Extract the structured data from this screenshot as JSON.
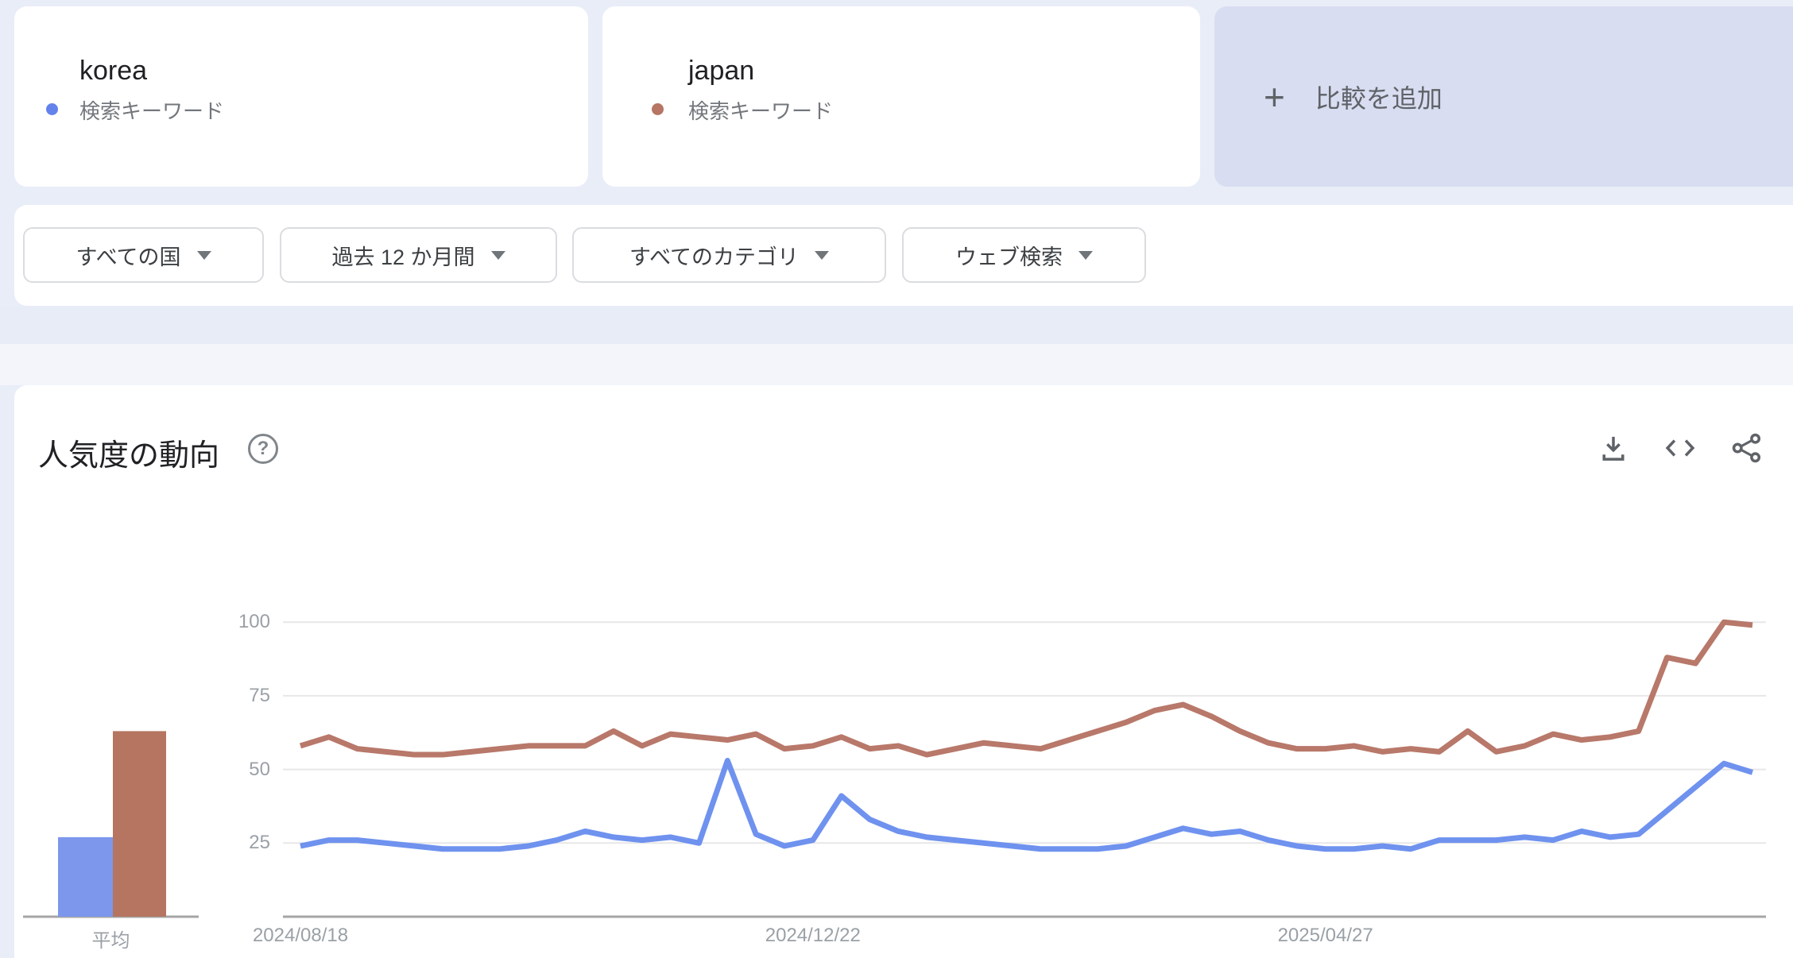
{
  "terms": [
    {
      "keyword": "korea",
      "type_label": "検索キーワード",
      "color": "#6F92EF",
      "dot_color": "#6382EB"
    },
    {
      "keyword": "japan",
      "type_label": "検索キーワード",
      "color": "#B8786A",
      "dot_color": "#B77564"
    }
  ],
  "add_comparison": {
    "plus_glyph": "+",
    "label": "比較を追加"
  },
  "filters": [
    {
      "label": "すべての国"
    },
    {
      "label": "過去 12 か月間"
    },
    {
      "label": "すべてのカテゴリ"
    },
    {
      "label": "ウェブ検索"
    }
  ],
  "section": {
    "title": "人気度の動向",
    "help_glyph": "?",
    "toolbar_icons": [
      "download-icon",
      "embed-code-icon",
      "share-icon"
    ]
  },
  "chart_data": {
    "type": "line",
    "title": "人気度の動向",
    "x_axis": {
      "unit": "week",
      "points": 52,
      "tick_labels": [
        {
          "label": "2024/08/18",
          "index": 0
        },
        {
          "label": "2024/12/22",
          "index": 18
        },
        {
          "label": "2025/04/27",
          "index": 36
        }
      ]
    },
    "y_axis": {
      "ticks": [
        25,
        50,
        75,
        100
      ],
      "range": [
        0,
        100
      ],
      "grid": true
    },
    "series": [
      {
        "name": "korea",
        "color": "#6F92EF",
        "values": [
          24,
          26,
          26,
          25,
          24,
          23,
          23,
          23,
          24,
          26,
          29,
          27,
          26,
          27,
          25,
          53,
          28,
          24,
          26,
          41,
          33,
          29,
          27,
          26,
          25,
          24,
          23,
          23,
          23,
          24,
          27,
          30,
          28,
          29,
          26,
          24,
          23,
          23,
          24,
          23,
          26,
          26,
          26,
          27,
          26,
          29,
          27,
          28,
          36,
          44,
          52,
          49
        ]
      },
      {
        "name": "japan",
        "color": "#B8786A",
        "values": [
          58,
          61,
          57,
          56,
          55,
          55,
          56,
          57,
          58,
          58,
          58,
          63,
          58,
          62,
          61,
          60,
          62,
          57,
          58,
          61,
          57,
          58,
          55,
          57,
          59,
          58,
          57,
          60,
          63,
          66,
          70,
          72,
          68,
          63,
          59,
          57,
          57,
          58,
          56,
          57,
          56,
          63,
          56,
          58,
          62,
          60,
          61,
          63,
          88,
          86,
          100,
          99
        ]
      }
    ],
    "average_panel": {
      "label": "平均",
      "values": [
        {
          "name": "korea",
          "value": 27,
          "color": "#7D97EC"
        },
        {
          "name": "japan",
          "value": 63,
          "color": "#B57560"
        }
      ]
    }
  }
}
